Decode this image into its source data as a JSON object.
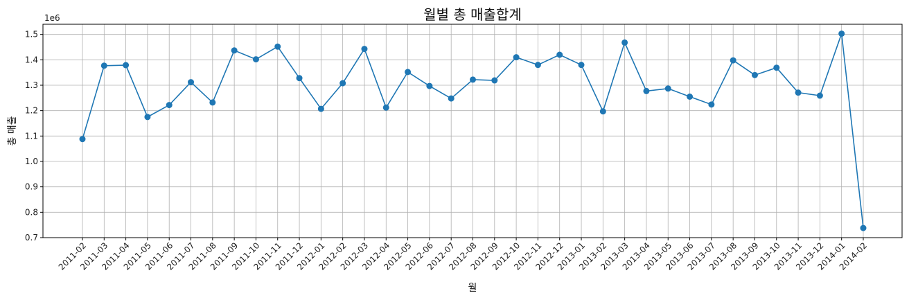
{
  "chart_data": {
    "type": "line",
    "title": "월별 총 매출합계",
    "xlabel": "월",
    "ylabel": "총 매출",
    "y_offset_text": "1e6",
    "ylim": [
      0.7,
      1.54
    ],
    "y_ticks": [
      "0.7",
      "0.8",
      "0.9",
      "1.0",
      "1.1",
      "1.2",
      "1.3",
      "1.4",
      "1.5"
    ],
    "grid": true,
    "color": "#1f77b4",
    "categories": [
      "2011-02",
      "2011-03",
      "2011-04",
      "2011-05",
      "2011-06",
      "2011-07",
      "2011-08",
      "2011-09",
      "2011-10",
      "2011-11",
      "2011-12",
      "2012-01",
      "2012-02",
      "2012-03",
      "2012-04",
      "2012-05",
      "2012-06",
      "2012-07",
      "2012-08",
      "2012-09",
      "2012-10",
      "2012-11",
      "2012-12",
      "2013-01",
      "2013-02",
      "2013-03",
      "2013-04",
      "2013-05",
      "2013-06",
      "2013-07",
      "2013-08",
      "2013-09",
      "2013-10",
      "2013-11",
      "2013-12",
      "2014-01",
      "2014-02"
    ],
    "values": [
      1.088,
      1.377,
      1.379,
      1.175,
      1.222,
      1.312,
      1.232,
      1.437,
      1.402,
      1.452,
      1.328,
      1.207,
      1.308,
      1.443,
      1.212,
      1.352,
      1.297,
      1.248,
      1.322,
      1.319,
      1.41,
      1.38,
      1.42,
      1.38,
      1.197,
      1.468,
      1.277,
      1.287,
      1.255,
      1.224,
      1.398,
      1.34,
      1.369,
      1.271,
      1.259,
      1.503,
      0.738
    ]
  }
}
